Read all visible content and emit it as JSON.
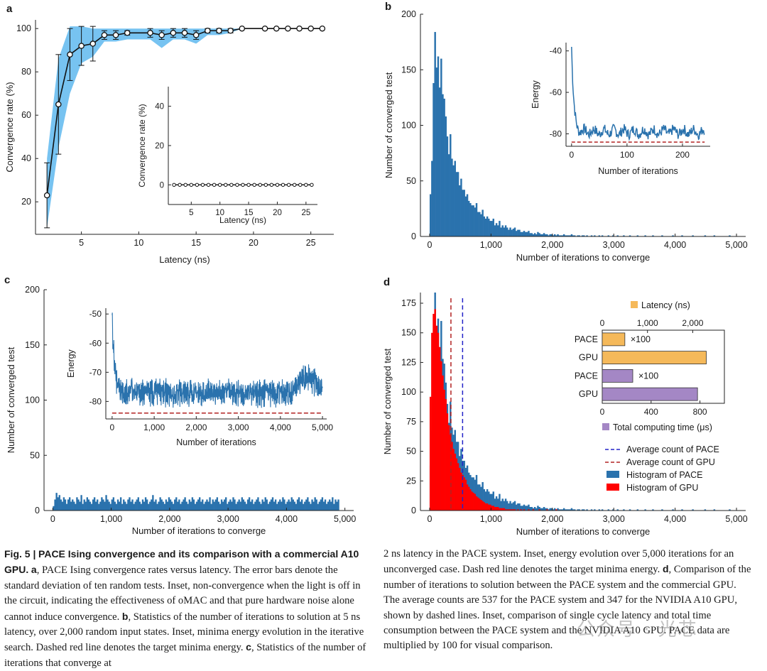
{
  "panel_labels": [
    "a",
    "b",
    "c",
    "d"
  ],
  "colors": {
    "blue": "#2a72ad",
    "band": "#77c3f1",
    "red_hist": "#ff0000",
    "red_dash": "#b22222",
    "navy_dash": "#2323c8",
    "orange": "#f5b95a",
    "purple": "#a487c5"
  },
  "chart_data": [
    {
      "id": "a",
      "type": "line",
      "xlabel": "Latency (ns)",
      "ylabel": "Convergence rate (%)",
      "xlim": [
        1,
        27
      ],
      "ylim": [
        5,
        104
      ],
      "xticks": [
        5,
        10,
        15,
        20,
        25
      ],
      "yticks": [
        20,
        40,
        60,
        80,
        100
      ],
      "grid": false,
      "series": [
        {
          "x": [
            2,
            3,
            4,
            5,
            6,
            7,
            8,
            9,
            11,
            12,
            13,
            14,
            15,
            16,
            17,
            18,
            19,
            21,
            22,
            23,
            24,
            25,
            26
          ],
          "y": [
            23,
            65,
            88,
            92,
            93,
            97,
            97,
            98,
            98,
            97,
            98,
            98,
            97,
            99,
            99,
            99,
            100,
            100,
            100,
            100,
            100,
            100,
            100
          ],
          "error": [
            15,
            23,
            12,
            9,
            8,
            2,
            2,
            1,
            2,
            2,
            2,
            2,
            2,
            1,
            1,
            1,
            0,
            0,
            0,
            0,
            0,
            0,
            0
          ]
        }
      ],
      "band": {
        "x": [
          2,
          3,
          4,
          5,
          6,
          7,
          8,
          9,
          11,
          12,
          13,
          14,
          15,
          16,
          17,
          18,
          19,
          21,
          22,
          23,
          24,
          25,
          26
        ],
        "low": [
          8,
          45,
          70,
          84,
          87,
          94,
          94,
          95,
          95,
          91,
          95,
          95,
          93,
          97,
          97,
          98,
          100,
          100,
          100,
          100,
          100,
          100,
          100
        ],
        "high": [
          40,
          86,
          101,
          101,
          100,
          100,
          100,
          100,
          100,
          100,
          100,
          100,
          100,
          100,
          100,
          100,
          100,
          100,
          100,
          100,
          100,
          100,
          100
        ]
      },
      "inset": {
        "xlabel": "Latency (ns)",
        "ylabel": "Convergence rate (%)",
        "xlim": [
          1,
          27
        ],
        "ylim": [
          -10,
          50
        ],
        "xticks": [
          5,
          10,
          15,
          20,
          25
        ],
        "yticks": [
          0,
          20,
          40
        ],
        "x": [
          2,
          3,
          4,
          5,
          6,
          7,
          8,
          9,
          10,
          11,
          12,
          13,
          14,
          15,
          16,
          17,
          18,
          19,
          20,
          21,
          22,
          23,
          24,
          25,
          26
        ],
        "y": [
          0,
          0,
          0,
          0,
          0,
          0,
          0,
          0,
          0,
          0,
          0,
          0,
          0,
          0,
          0,
          0,
          0,
          0,
          0,
          0,
          0,
          0,
          0,
          0,
          0
        ]
      }
    },
    {
      "id": "b",
      "type": "bar",
      "xlabel": "Number of iterations to converge",
      "ylabel": "Number of converged test",
      "xlim": [
        -150,
        5150
      ],
      "ylim": [
        0,
        200
      ],
      "xticks": [
        0,
        1000,
        2000,
        3000,
        4000,
        5000
      ],
      "xtick_labels": [
        "0",
        "1,000",
        "2,000",
        "3,000",
        "4,000",
        "5,000"
      ],
      "yticks": [
        0,
        50,
        100,
        150,
        200
      ],
      "bin_start": 0,
      "bin_width": 25,
      "counts": [
        38,
        68,
        138,
        184,
        152,
        162,
        134,
        160,
        128,
        124,
        108,
        90,
        74,
        92,
        70,
        64,
        68,
        58,
        58,
        46,
        52,
        42,
        42,
        36,
        38,
        32,
        30,
        28,
        28,
        26,
        30,
        22,
        22,
        20,
        24,
        18,
        16,
        18,
        16,
        14,
        14,
        16,
        10,
        12,
        10,
        14,
        8,
        10,
        8,
        10,
        8,
        6,
        8,
        6,
        7,
        8,
        5,
        6,
        6,
        4,
        4,
        5,
        4,
        4,
        5,
        3,
        3,
        2,
        3,
        2,
        4,
        3,
        2,
        2,
        3,
        2,
        2,
        1,
        2,
        2,
        1,
        2,
        1,
        2,
        1,
        1,
        1,
        2,
        1,
        1,
        1,
        1,
        2,
        1,
        1,
        0,
        1,
        1,
        0,
        1,
        1,
        0,
        1,
        0,
        0,
        1,
        0,
        1,
        0,
        0,
        1,
        0,
        1,
        0,
        0,
        0,
        1,
        0,
        0,
        1,
        0,
        0,
        1,
        0,
        0,
        0,
        1,
        0,
        0,
        0,
        1,
        0,
        0,
        0,
        0,
        1,
        0,
        0,
        0,
        0,
        1,
        0,
        0,
        0,
        0,
        1,
        0,
        0,
        0,
        0,
        0,
        1,
        0,
        0,
        0,
        0,
        0,
        0,
        1,
        0,
        0,
        0,
        0,
        0,
        1,
        0,
        0,
        0,
        0,
        0,
        0,
        1,
        0,
        0,
        0,
        0,
        0,
        0,
        0,
        1,
        0,
        0,
        0,
        0,
        0,
        1,
        0,
        0,
        0,
        0,
        0,
        0,
        0,
        0,
        0,
        1
      ],
      "inset": {
        "xlabel": "Number of iterations",
        "ylabel": "Energy",
        "xlim": [
          -10,
          250
        ],
        "ylim": [
          -86,
          -36
        ],
        "xticks": [
          0,
          100,
          200
        ],
        "yticks": [
          -80,
          -60,
          -40
        ],
        "target": -84,
        "mean_level": -79,
        "length": 240,
        "start": -38
      }
    },
    {
      "id": "c",
      "type": "bar",
      "xlabel": "Number of iterations to converge",
      "ylabel": "Number of converged test",
      "xlim": [
        -150,
        5150
      ],
      "ylim": [
        0,
        200
      ],
      "xticks": [
        0,
        1000,
        2000,
        3000,
        4000,
        5000
      ],
      "xtick_labels": [
        "0",
        "1,000",
        "2,000",
        "3,000",
        "4,000",
        "5,000"
      ],
      "yticks": [
        0,
        50,
        100,
        150,
        200
      ],
      "bin_start": 0,
      "bin_width": 25,
      "counts": [
        4,
        10,
        16,
        12,
        14,
        10,
        8,
        12,
        10,
        6,
        10,
        12,
        8,
        10,
        8,
        6,
        12,
        10,
        8,
        14,
        6,
        10,
        8,
        12,
        10,
        8,
        6,
        10,
        12,
        8,
        10,
        6,
        8,
        12,
        10,
        8,
        14,
        10,
        8,
        6,
        10,
        12,
        8,
        6,
        10,
        8,
        12,
        6,
        10,
        8,
        6,
        10,
        12,
        8,
        10,
        6,
        8,
        10,
        12,
        8,
        6,
        10,
        8,
        12,
        10,
        6,
        8,
        10,
        14,
        8,
        10,
        6,
        8,
        12,
        10,
        8,
        6,
        10,
        8,
        12,
        10,
        8,
        6,
        10,
        12,
        8,
        10,
        6,
        8,
        10,
        12,
        8,
        6,
        10,
        8,
        12,
        10,
        6,
        8,
        10,
        12,
        8,
        10,
        6,
        8,
        10,
        8,
        12,
        6,
        10,
        8,
        10,
        12,
        8,
        6,
        10,
        8,
        10,
        12,
        6,
        8,
        10,
        8,
        12,
        10,
        6,
        8,
        10,
        8,
        12,
        10,
        8,
        6,
        10,
        12,
        8,
        10,
        6,
        8,
        10,
        12,
        8,
        6,
        10,
        8,
        12,
        10,
        6,
        8,
        10,
        12,
        8,
        10,
        6,
        8,
        10,
        8,
        12,
        10,
        6,
        8,
        10,
        8,
        12,
        10,
        8,
        6,
        10,
        12,
        8,
        10,
        6,
        8,
        10,
        12,
        8,
        6,
        10,
        8,
        12,
        10,
        6,
        8,
        10,
        12,
        8,
        10,
        6,
        8,
        10,
        8,
        12,
        6,
        10,
        8,
        10
      ],
      "inset": {
        "xlabel": "Number of iterations",
        "ylabel": "Energy",
        "xlim": [
          -150,
          5100
        ],
        "ylim": [
          -86,
          -48
        ],
        "xticks": [
          0,
          1000,
          2000,
          3000,
          4000,
          5000
        ],
        "xtick_labels": [
          "0",
          "1,000",
          "2,000",
          "3,000",
          "4,000",
          "5,000"
        ],
        "yticks": [
          -80,
          -70,
          -60,
          -50
        ],
        "target": -84,
        "mean_level": -77,
        "length": 5000,
        "start": -52
      }
    },
    {
      "id": "d",
      "type": "bar",
      "xlabel": "Number of iterations to converge",
      "ylabel": "Number of converged test",
      "xlim": [
        -150,
        5150
      ],
      "ylim": [
        0,
        184
      ],
      "xticks": [
        0,
        1000,
        2000,
        3000,
        4000,
        5000
      ],
      "xtick_labels": [
        "0",
        "1,000",
        "2,000",
        "3,000",
        "4,000",
        "5,000"
      ],
      "yticks": [
        0,
        25,
        50,
        75,
        100,
        125,
        150,
        175
      ],
      "bin_start": 0,
      "bin_width": 25,
      "series": [
        {
          "name": "Histogram of PACE",
          "counts": [
            38,
            68,
            138,
            184,
            152,
            162,
            134,
            160,
            128,
            124,
            108,
            90,
            74,
            92,
            70,
            64,
            68,
            58,
            58,
            46,
            52,
            42,
            42,
            36,
            38,
            32,
            30,
            28,
            28,
            26,
            30,
            22,
            22,
            20,
            24,
            18,
            16,
            18,
            16,
            14,
            14,
            16,
            10,
            12,
            10,
            14,
            8,
            10,
            8,
            10,
            8,
            6,
            8,
            6,
            7,
            8,
            5,
            6,
            6,
            4,
            4,
            5,
            4,
            4,
            5,
            3,
            3,
            2,
            3,
            2,
            4,
            3,
            2,
            2,
            3,
            2,
            2,
            1,
            2,
            2,
            1,
            2,
            1,
            2,
            1,
            1,
            1,
            2,
            1,
            1,
            1,
            1,
            2,
            1,
            1,
            0,
            1,
            1,
            0,
            1,
            1,
            0,
            1,
            0,
            0,
            1,
            0,
            1,
            0,
            0,
            1,
            0,
            1,
            0,
            0,
            0,
            1,
            0,
            0,
            1,
            0,
            0,
            1,
            0,
            0,
            0,
            1,
            0,
            0,
            0,
            1,
            0,
            0,
            0,
            0,
            1,
            0,
            0,
            0,
            0,
            1,
            0,
            0,
            0,
            0,
            1,
            0,
            0,
            0,
            0,
            0,
            1,
            0,
            0,
            0,
            0,
            0,
            0,
            1,
            0,
            0,
            0,
            0,
            0,
            1,
            0,
            0,
            0,
            0,
            0,
            0,
            1,
            0,
            0,
            0,
            0,
            0,
            0,
            0,
            1,
            0,
            0,
            0,
            0,
            0,
            1,
            0,
            0,
            0,
            0,
            0,
            0,
            0,
            0,
            0,
            1
          ]
        },
        {
          "name": "Histogram of GPU",
          "counts": [
            96,
            150,
            166,
            170,
            156,
            150,
            138,
            126,
            114,
            102,
            94,
            82,
            72,
            64,
            58,
            52,
            48,
            44,
            40,
            36,
            32,
            30,
            28,
            26,
            22,
            20,
            18,
            16,
            15,
            14,
            12,
            11,
            10,
            9,
            8,
            7,
            6,
            6,
            5,
            5,
            4,
            4,
            3,
            3,
            3,
            2,
            2,
            2,
            2,
            1,
            1,
            1,
            1,
            1,
            1,
            1,
            0,
            1,
            0,
            1,
            0,
            1,
            0,
            0,
            1,
            0,
            0,
            1,
            0,
            0,
            0,
            1,
            0,
            0,
            0,
            0,
            1,
            0,
            0,
            0,
            0,
            0,
            1
          ]
        }
      ],
      "averages": [
        {
          "name": "Average count of PACE",
          "value": 537
        },
        {
          "name": "Average count of GPU",
          "value": 347
        }
      ],
      "legend": {
        "position": "right",
        "entries": [
          "Average count of PACE",
          "Average count of GPU",
          "Histogram of PACE",
          "Histogram of GPU"
        ]
      },
      "inset": {
        "type": "bar",
        "categories": [
          "PACE",
          "GPU",
          "PACE",
          "GPU"
        ],
        "top_axis": {
          "label": "Latency (ns)",
          "xlim": [
            0,
            2700
          ],
          "ticks": [
            0,
            1000,
            2000
          ],
          "tick_labels": [
            "0",
            "1,000",
            "2,000"
          ]
        },
        "bottom_axis": {
          "label": "Total computing time (μs)",
          "xlim": [
            0,
            1000
          ],
          "ticks": [
            0,
            400,
            800
          ],
          "tick_labels": [
            "0",
            "400",
            "800"
          ]
        },
        "latency_values": [
          500,
          2300
        ],
        "time_values": [
          250,
          780
        ],
        "multiplier_label": "×100"
      }
    }
  ],
  "caption": {
    "left": {
      "fig_label": "Fig. 5 |",
      "title": "PACE Ising convergence and its comparison with a commercial A10 GPU.",
      "parts": [
        {
          "bold": "a",
          "text": ", PACE Ising convergence rates versus latency. The error bars denote the standard deviation of ten random tests. Inset, non-convergence when the light is off in the circuit, indicating the effectiveness of oMAC and that pure hardware noise alone cannot induce convergence. "
        },
        {
          "bold": "b",
          "text": ", Statistics of the number of iterations to solution at 5 ns latency, over 2,000 random input states. Inset, minima energy evolution in the iterative search. Dashed red line denotes the target minima energy. "
        },
        {
          "bold": "c",
          "text": ", Statistics of the number of iterations that converge at"
        }
      ]
    },
    "right": {
      "parts": [
        {
          "bold": "",
          "text": "2 ns latency in the PACE system. Inset, energy evolution over 5,000 iterations for an unconverged case. Dash red line denotes the target minima energy. "
        },
        {
          "bold": "d",
          "text": ", Comparison of the number of iterations to solution between the PACE system and the commercial GPU. The average counts are 537 for the PACE system and 347 for the NVIDIA A10 GPU, shown by dashed lines. Inset, comparison of single cycle latency and total time consumption between the PACE system and the NVIDIA A10 GPU. PACE data are multiplied by 100 for visual comparison."
        }
      ]
    },
    "watermark": "公众号 · 光芯"
  }
}
